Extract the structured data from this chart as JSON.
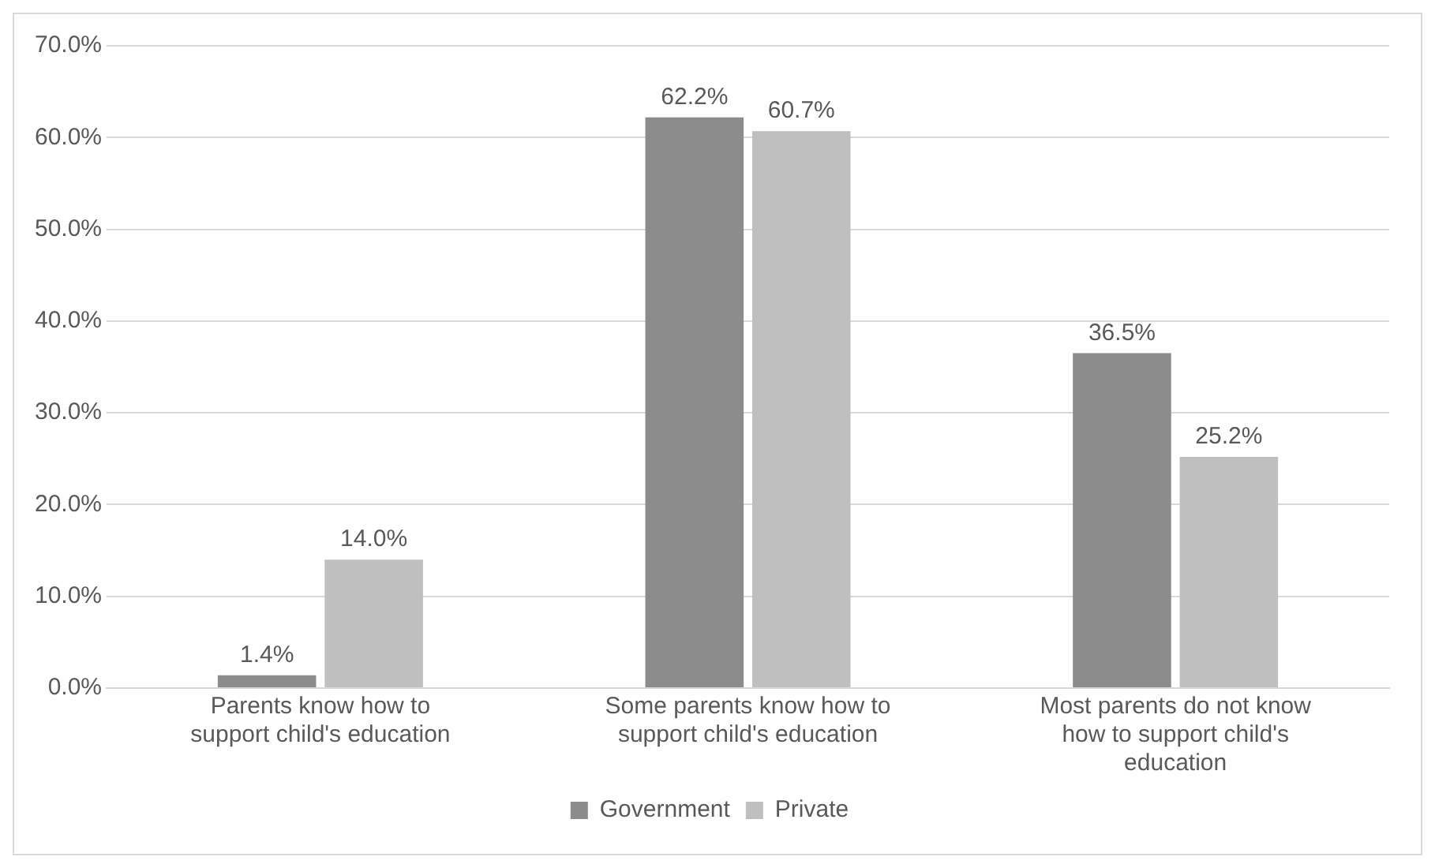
{
  "chart_data": {
    "type": "bar",
    "categories": [
      "Parents know how to support child's education",
      "Some parents know how to support child's education",
      "Most parents do not know how to support child's education"
    ],
    "series": [
      {
        "name": "Government",
        "color": "#8c8c8c",
        "values": [
          1.4,
          62.2,
          36.5
        ],
        "value_labels": [
          "1.4%",
          "62.2%",
          "36.5%"
        ]
      },
      {
        "name": "Private",
        "color": "#bfbfbf",
        "values": [
          14.0,
          60.7,
          25.2
        ],
        "value_labels": [
          "14.0%",
          "60.7%",
          "25.2%"
        ]
      }
    ],
    "ylim": [
      0,
      70
    ],
    "yticks": [
      {
        "value": 0,
        "label": "0.0%"
      },
      {
        "value": 10,
        "label": "10.0%"
      },
      {
        "value": 20,
        "label": "20.0%"
      },
      {
        "value": 30,
        "label": "30.0%"
      },
      {
        "value": 40,
        "label": "40.0%"
      },
      {
        "value": 50,
        "label": "50.0%"
      },
      {
        "value": 60,
        "label": "60.0%"
      },
      {
        "value": 70,
        "label": "70.0%"
      }
    ],
    "grid": "y",
    "legend": "bottom"
  }
}
